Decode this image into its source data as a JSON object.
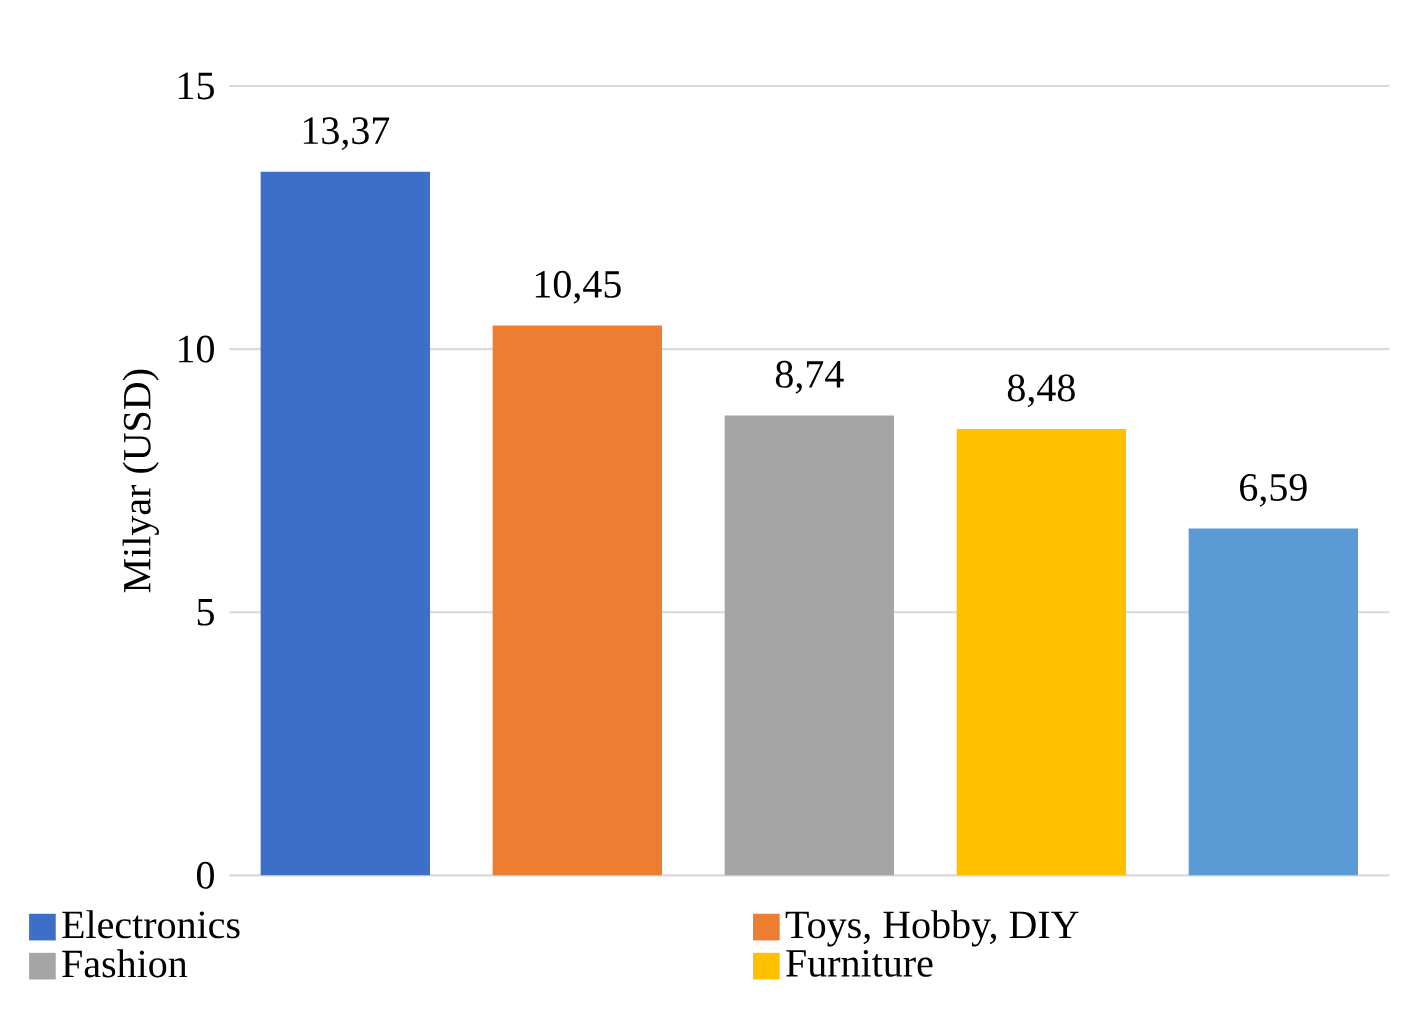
{
  "chart_data": {
    "type": "bar",
    "ylabel": "Milyar (USD)",
    "categories": [
      null,
      null,
      null,
      null,
      null
    ],
    "series": [
      {
        "name": "Electronics",
        "color": "#3d6fc9",
        "values": [
          13.37,
          null,
          null,
          null,
          null
        ]
      },
      {
        "name": "Toys, Hobby, DIY",
        "color": "#ed7d31",
        "values": [
          null,
          10.45,
          null,
          null,
          null
        ]
      },
      {
        "name": "Fashion",
        "color": "#a5a5a5",
        "values": [
          null,
          null,
          8.74,
          null,
          null
        ]
      },
      {
        "name": "Furniture",
        "color": "#ffc000",
        "values": [
          null,
          null,
          null,
          8.48,
          null
        ]
      },
      {
        "color": "#5b9bd5",
        "values": [
          null,
          null,
          null,
          null,
          6.59
        ]
      }
    ],
    "value_labels": [
      "13,37",
      "10,45",
      "8,74",
      "8,48",
      "6,59"
    ],
    "ylim": [
      0,
      15
    ],
    "yticks": [
      0,
      5,
      10,
      15
    ],
    "grid": "y",
    "legend": "bottom"
  }
}
